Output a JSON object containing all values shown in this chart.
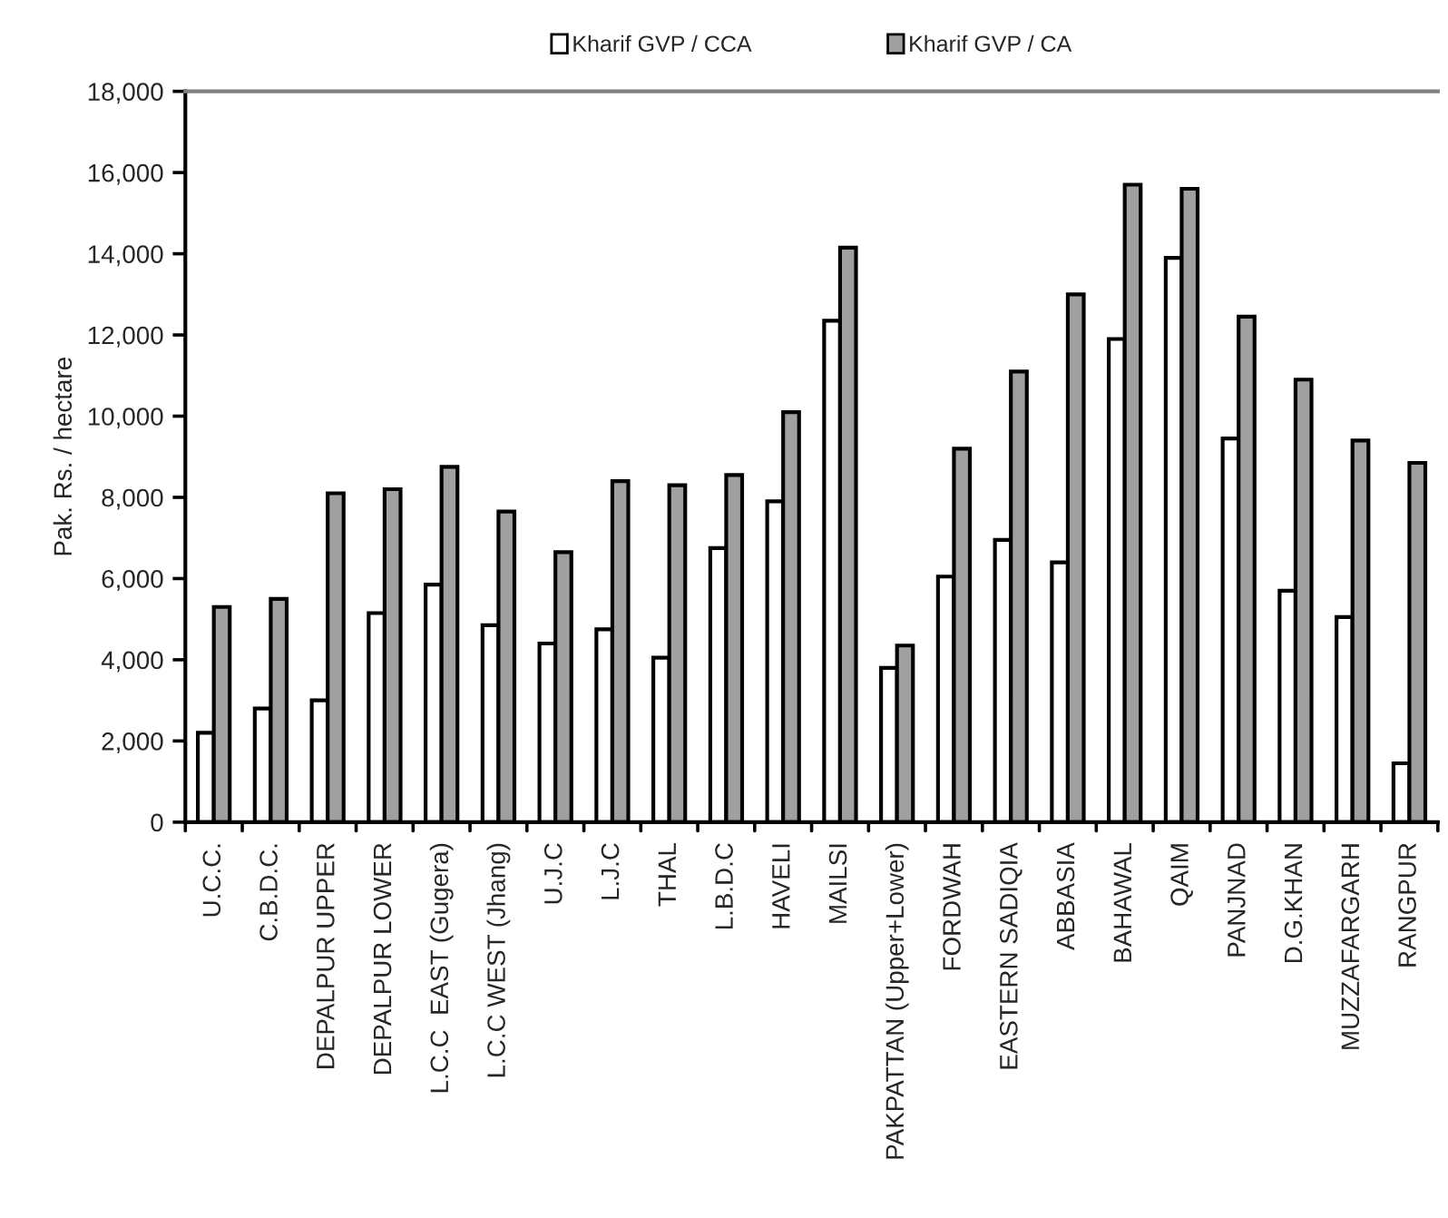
{
  "chart_data": {
    "type": "bar",
    "ylabel": "Pak. Rs. / hectare",
    "categories": [
      "U.C.C.",
      "C.B.D.C.",
      "DEPALPUR UPPER",
      "DEPALPUR LOWER",
      "L.C.C  EAST (Gugera)",
      "L.C.C WEST (Jhang)",
      "U.J.C",
      "L.J.C",
      "THAL",
      "L.B.D.C",
      "HAVELI",
      "MAILSI",
      "PAKPATTAN (Upper+Lower)",
      "FORDWAH",
      "EASTERN SADIQIA",
      "ABBASIA",
      "BAHAWAL",
      "QAIM",
      "PANJNAD",
      "D.G.KHAN",
      "MUZZAFARGARH",
      "RANGPUR"
    ],
    "series": [
      {
        "name": "Kharif GVP / CCA",
        "color": "#ffffff",
        "values": [
          2200,
          2800,
          3000,
          5150,
          5850,
          4850,
          4400,
          4750,
          4050,
          6750,
          7900,
          12350,
          3800,
          6050,
          6950,
          6400,
          11900,
          13900,
          9450,
          5700,
          5050,
          1450
        ]
      },
      {
        "name": "Kharif GVP / CA",
        "color": "#a0a0a0",
        "values": [
          5300,
          5500,
          8100,
          8200,
          8750,
          7650,
          6650,
          8400,
          8300,
          8550,
          10100,
          14150,
          4350,
          9200,
          11100,
          13000,
          15700,
          15600,
          12450,
          10900,
          9400,
          8850
        ]
      }
    ],
    "ylim": [
      0,
      18000
    ],
    "yticks": [
      {
        "value": 0,
        "label": "0"
      },
      {
        "value": 2000,
        "label": "2,000"
      },
      {
        "value": 4000,
        "label": "4,000"
      },
      {
        "value": 6000,
        "label": "6,000"
      },
      {
        "value": 8000,
        "label": "8,000"
      },
      {
        "value": 10000,
        "label": "10,000"
      },
      {
        "value": 12000,
        "label": "12,000"
      },
      {
        "value": 14000,
        "label": "14,000"
      },
      {
        "value": 16000,
        "label": "16,000"
      },
      {
        "value": 18000,
        "label": "18,000"
      }
    ],
    "grid": false,
    "legend": "top"
  }
}
